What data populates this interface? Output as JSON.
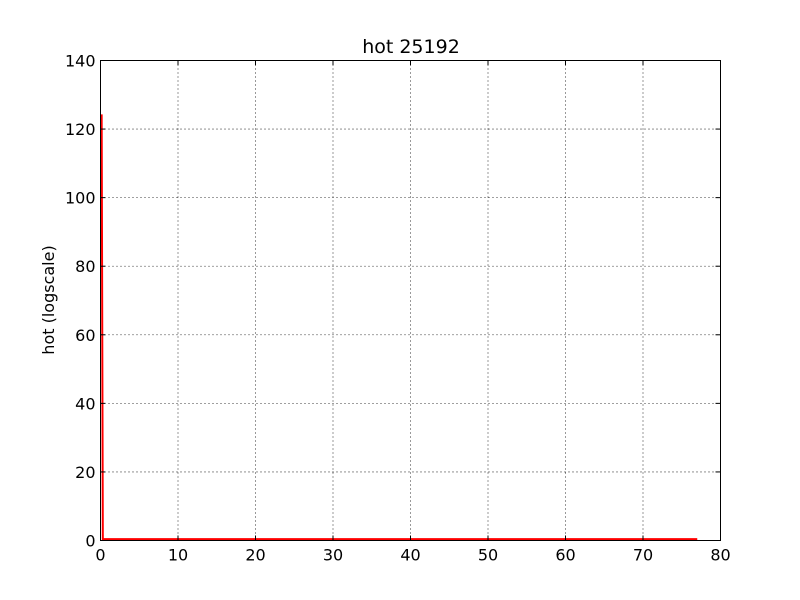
{
  "chart_data": {
    "type": "line",
    "title": "hot 25192",
    "xlabel": "",
    "ylabel": "hot (logscale)",
    "xlim": [
      0,
      80
    ],
    "ylim": [
      0,
      140
    ],
    "xticks": [
      0,
      10,
      20,
      30,
      40,
      50,
      60,
      70,
      80
    ],
    "yticks": [
      0,
      20,
      40,
      60,
      80,
      100,
      120,
      140
    ],
    "grid": true,
    "series": [
      {
        "color": "#ff0000",
        "x": [
          0.0,
          0.15,
          0.3,
          1,
          10,
          20,
          30,
          40,
          50,
          60,
          70,
          77
        ],
        "y": [
          124,
          124,
          0.4,
          0.4,
          0.4,
          0.4,
          0.4,
          0.4,
          0.4,
          0.4,
          0.4,
          0.4
        ]
      }
    ]
  }
}
